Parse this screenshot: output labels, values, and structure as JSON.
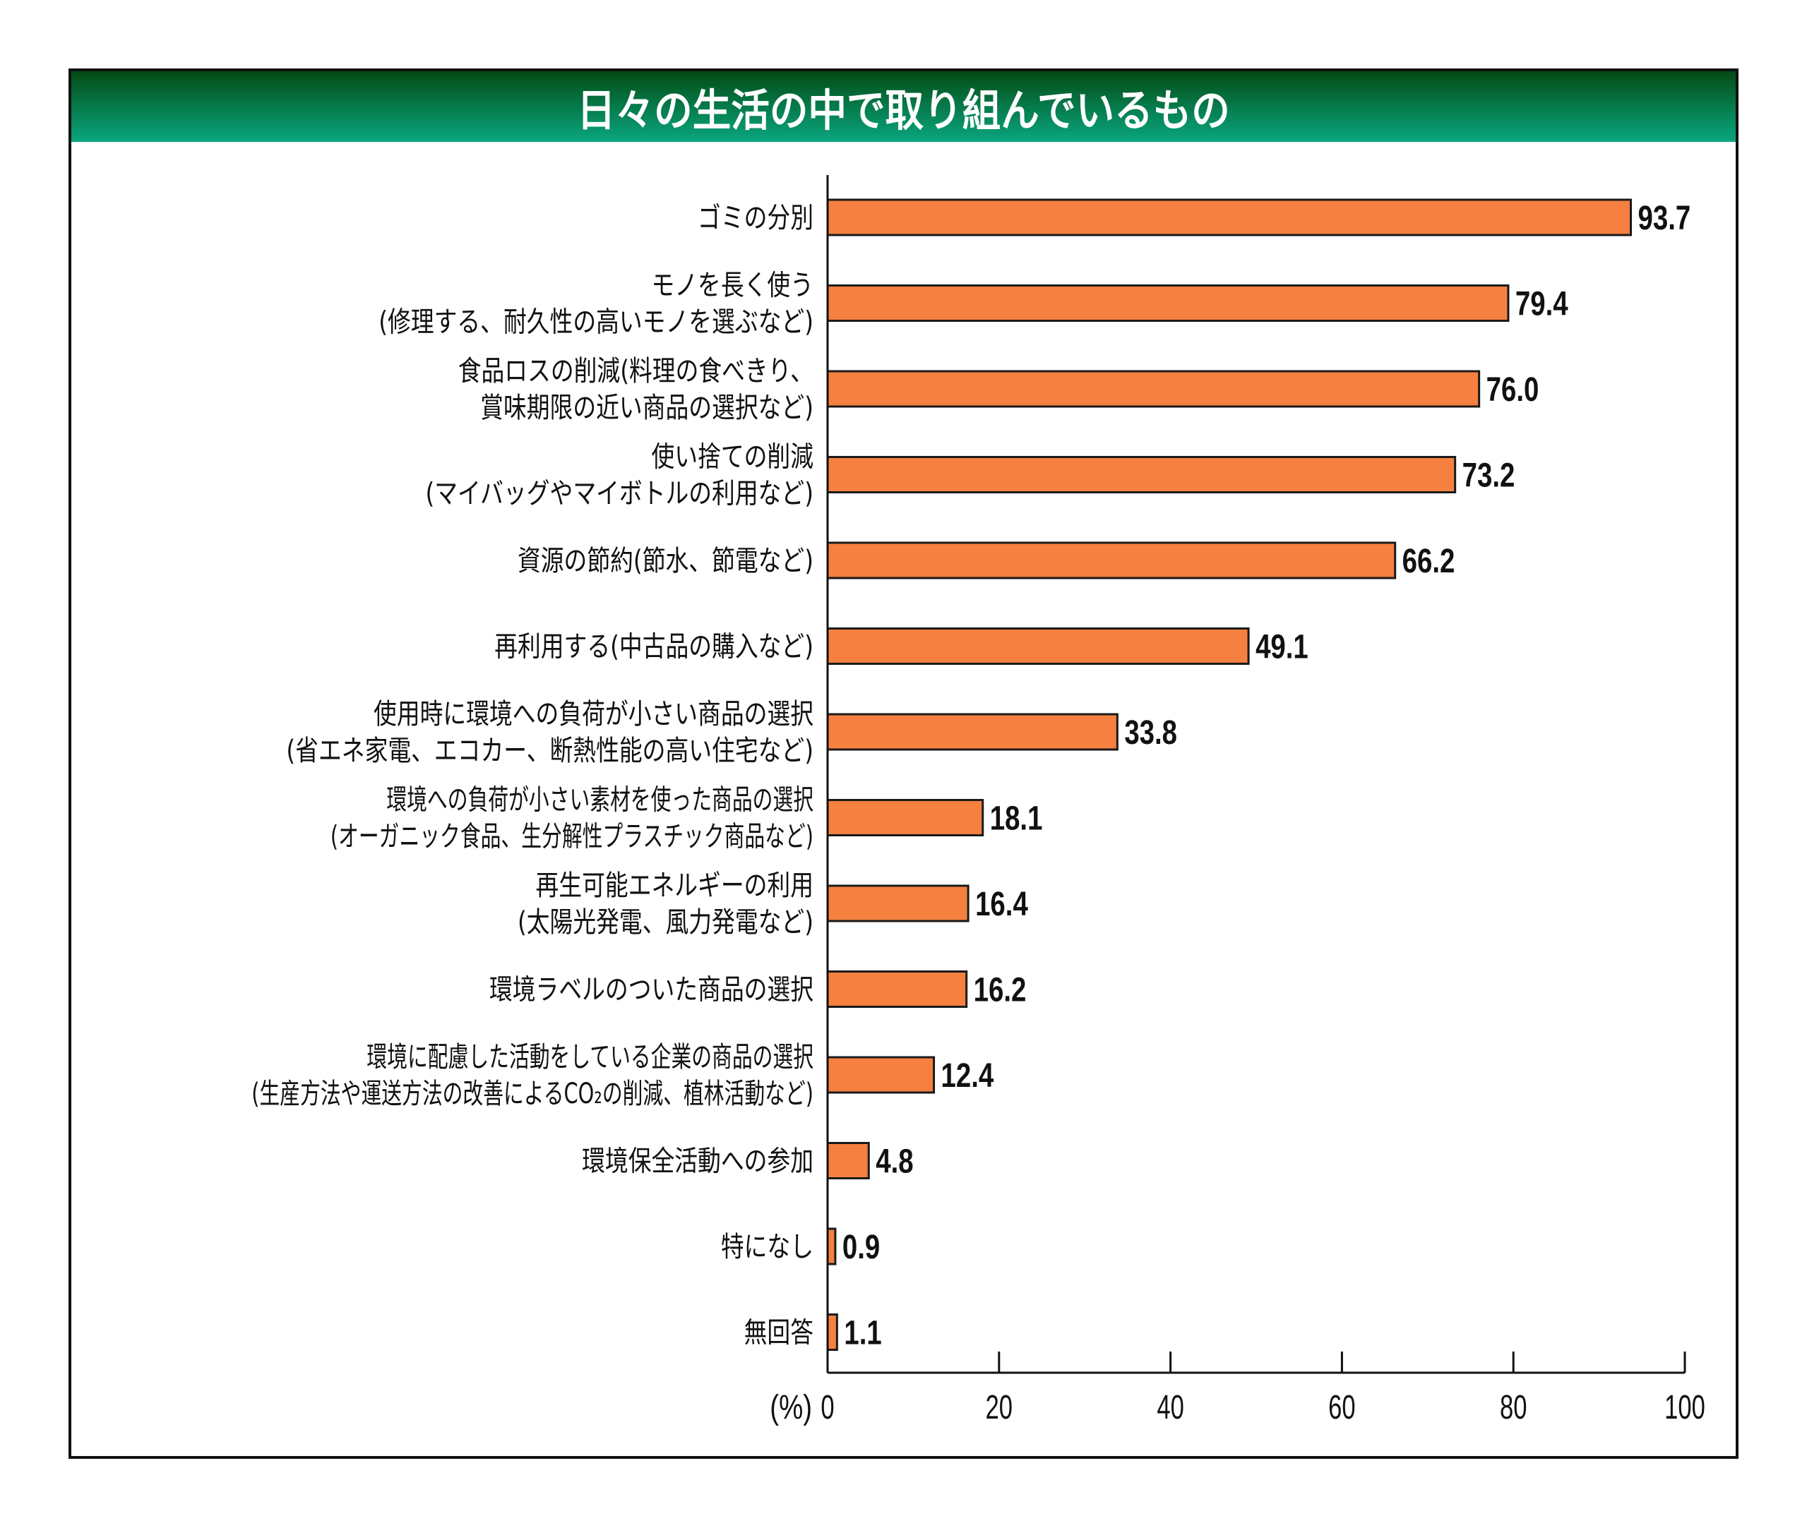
{
  "title": "日々の生活の中で取り組んでいるもの",
  "colors": {
    "bar": "#F58040",
    "bar_border": "#1a1a1a",
    "header_top": "#034b14",
    "header_bottom": "#0aa680"
  },
  "chart_data": {
    "type": "bar",
    "orientation": "horizontal",
    "title": "日々の生活の中で取り組んでいるもの",
    "xlabel": "(%)",
    "ylabel": "",
    "xlim": [
      0,
      100
    ],
    "xticks": [
      0,
      20,
      40,
      60,
      80,
      100
    ],
    "grid": false,
    "categories": [
      [
        "ゴミの分別"
      ],
      [
        "モノを長く使う",
        "(修理する、耐久性の高いモノを選ぶなど)"
      ],
      [
        "食品ロスの削減(料理の食べきり、",
        "賞味期限の近い商品の選択など)"
      ],
      [
        "使い捨ての削減",
        "(マイバッグやマイボトルの利用など)"
      ],
      [
        "資源の節約(節水、節電など)"
      ],
      [
        "再利用する(中古品の購入など)"
      ],
      [
        "使用時に環境への負荷が小さい商品の選択",
        "(省エネ家電、エコカー、断熱性能の高い住宅など)"
      ],
      [
        "環境への負荷が小さい素材を使った商品の選択",
        "(オーガニック食品、生分解性プラスチック商品など)"
      ],
      [
        "再生可能エネルギーの利用",
        "(太陽光発電、風力発電など)"
      ],
      [
        "環境ラベルのついた商品の選択"
      ],
      [
        "環境に配慮した活動をしている企業の商品の選択",
        "(生産方法や運送方法の改善によるCO₂の削減、植林活動など)"
      ],
      [
        "環境保全活動への参加"
      ],
      [
        "特になし"
      ],
      [
        "無回答"
      ]
    ],
    "values": [
      93.7,
      79.4,
      76.0,
      73.2,
      66.2,
      49.1,
      33.8,
      18.1,
      16.4,
      16.2,
      12.4,
      4.8,
      0.9,
      1.1
    ],
    "value_labels": [
      "93.7",
      "79.4",
      "76.0",
      "73.2",
      "66.2",
      "49.1",
      "33.8",
      "18.1",
      "16.4",
      "16.2",
      "12.4",
      "4.8",
      "0.9",
      "1.1"
    ]
  }
}
